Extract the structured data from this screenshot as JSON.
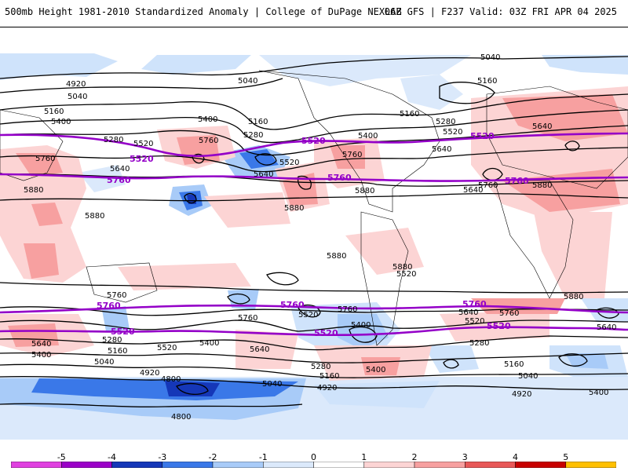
{
  "header": {
    "left_title": "500mb Height 1981-2010 Standardized Anomaly | College of DuPage NEXLAB",
    "right_title": "06Z GFS | F237 Valid: 03Z FRI APR 04 2025"
  },
  "contour_labels": {
    "l5040_top": "5040",
    "l5160_ne": "5160",
    "l4920_w": "4920",
    "l5040_w": "5040",
    "l5040_np": "5040",
    "l5160_w": "5160",
    "l5400_w": "5400",
    "l5400_nc": "5400",
    "l5160_nc": "5160",
    "l5280_w": "5280",
    "l5520_w": "5520",
    "l5280_nc": "5280",
    "l5520_nc": "5520",
    "l5640_w": "5640",
    "l5760_w": "5760",
    "l5760_nc": "5760",
    "l5640_nc": "5640",
    "l5400_am": "5400",
    "l5760_am": "5760",
    "l5880_am": "5880",
    "l5640_am": "5640",
    "l5160_ne2": "5160",
    "l5280_eu": "5280",
    "l5520_eu": "5520",
    "l5640_eu": "5640",
    "l5640_eu2": "5640",
    "l5760_eu": "5760",
    "l5880_eu": "5880",
    "l5880_w": "5880",
    "l5880_wl": "5880",
    "l5880_sa": "5880",
    "l5880_sa2": "5880",
    "l5880_af": "5880",
    "l5880_pac": "5880",
    "l5760_s1": "5760",
    "l5760_s2": "5760",
    "l5760_s3": "5760",
    "l5760_s4": "5760",
    "l5640_s1": "5640",
    "l5640_s2": "5640",
    "l5640_s3": "5640",
    "l5520_s1": "5520",
    "l5520_s2": "5520",
    "l5520_s3": "5520",
    "l5400_s1": "5400",
    "l5400_s2": "5400",
    "l5400_s3": "5400",
    "l5400_s4": "5400",
    "l5280_s1": "5280",
    "l5280_s2": "5280",
    "l5280_s3": "5280",
    "l5160_s1": "5160",
    "l5160_s2": "5160",
    "l5160_s3": "5160",
    "l5040_s1": "5040",
    "l5040_s2": "5040",
    "l5040_s3": "5040",
    "l4920_s1": "4920",
    "l4920_s2": "4920",
    "l4920_s3": "4920",
    "l4800_s1": "4800",
    "l4800_s2": "4800",
    "l5400_s5": "5400",
    "l5640_s4": "5640",
    "l5520_s4": "5520"
  },
  "purple_labels": {
    "p5520_a": "5520",
    "p5520_b": "5520",
    "p5520_c": "5520",
    "p5760_a": "5760",
    "p5760_b": "5760",
    "p5760_c": "5760",
    "p5760_d": "5760",
    "p5760_e": "5760",
    "p5760_f": "5760",
    "p5520_d": "5520",
    "p5520_e": "5520",
    "p5520_f": "5520"
  },
  "colorbar": {
    "ticks": [
      "-5",
      "-4",
      "-3",
      "-2",
      "-1",
      "0",
      "1",
      "2",
      "3",
      "4",
      "5"
    ],
    "colors": [
      "#e040e0",
      "#9b00c8",
      "#1537b8",
      "#3a78e8",
      "#a8cbf8",
      "#dbe9fb",
      "#ffffff",
      "#fcd4d4",
      "#f7a0a0",
      "#e85858",
      "#c80000",
      "#ffc000"
    ]
  }
}
